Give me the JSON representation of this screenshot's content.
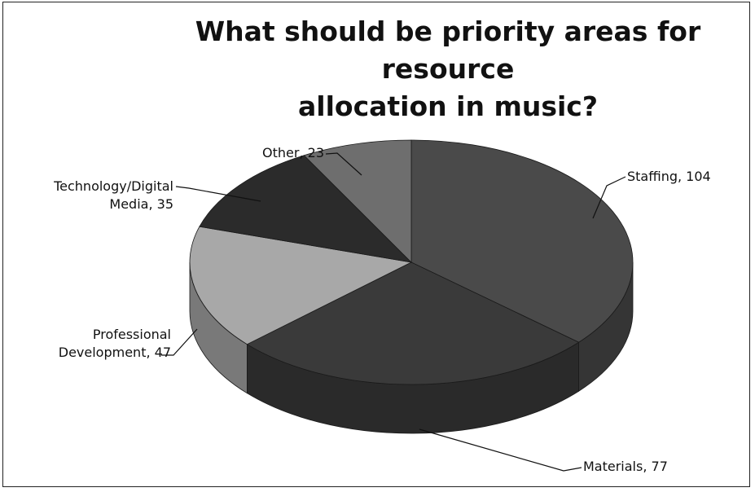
{
  "chart_data": {
    "type": "pie",
    "title": "What should be priority areas for resource allocation in music?",
    "title_lines": [
      "What should be priority areas for resource",
      "allocation in music?"
    ],
    "slices": [
      {
        "label": "Staffing",
        "value": 104,
        "label_lines": [
          "Staffing, 104"
        ],
        "color": "#4a4a4a"
      },
      {
        "label": "Materials",
        "value": 77,
        "label_lines": [
          "Materials, 77"
        ],
        "color": "#3a3a3a"
      },
      {
        "label": "Professional Development",
        "value": 47,
        "label_lines": [
          "Professional",
          "Development, 47"
        ],
        "color": "#a8a8a8"
      },
      {
        "label": "Technology/Digital Media",
        "value": 35,
        "label_lines": [
          "Technology/Digital",
          "Media, 35"
        ],
        "color": "#2b2b2b"
      },
      {
        "label": "Other",
        "value": 23,
        "label_lines": [
          "Other, 23"
        ],
        "color": "#6e6e6e"
      }
    ],
    "legend": "none",
    "style": "3d-pie"
  }
}
